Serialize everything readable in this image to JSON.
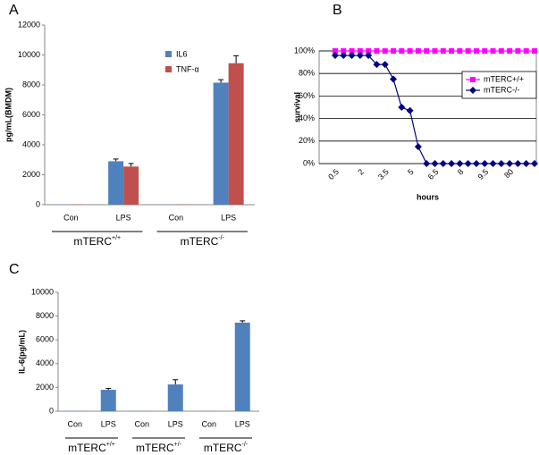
{
  "chart_data": [
    {
      "type": "bar",
      "panel_label": "A",
      "ylabel": "pg/mL(BMDM)",
      "categories": [
        "Con",
        "LPS",
        "Con",
        "LPS"
      ],
      "groups": [
        {
          "label": "mTERC",
          "superscript": "+/+"
        },
        {
          "label": "mTERC",
          "superscript": "-/-"
        }
      ],
      "series": [
        {
          "name": "IL6",
          "color": "#4f81bd",
          "values": [
            20,
            2900,
            20,
            8150
          ],
          "errors": [
            0,
            150,
            0,
            200
          ]
        },
        {
          "name": "TNF-α",
          "color": "#c0504d",
          "values": [
            20,
            2550,
            20,
            9450
          ],
          "errors": [
            0,
            200,
            0,
            500
          ]
        }
      ],
      "ylim": [
        0,
        12000
      ],
      "yticks": [
        0,
        2000,
        4000,
        6000,
        8000,
        10000,
        12000
      ],
      "legend": "top-right"
    },
    {
      "type": "line",
      "panel_label": "B",
      "ylabel": "survival",
      "xlabel": "hours",
      "categories": [
        "0.5",
        null,
        null,
        "2",
        null,
        null,
        "3.5",
        null,
        null,
        "5",
        null,
        null,
        "6.5",
        null,
        null,
        "8",
        null,
        null,
        "9.5",
        null,
        null,
        "80",
        null,
        null,
        null
      ],
      "series": [
        {
          "name": "mTERC+/+",
          "color": "#ff00ff",
          "marker": "square",
          "values": [
            100,
            100,
            100,
            100,
            100,
            100,
            100,
            100,
            100,
            100,
            100,
            100,
            100,
            100,
            100,
            100,
            100,
            100,
            100,
            100,
            100,
            100,
            100,
            100,
            100
          ]
        },
        {
          "name": "mTERC-/-",
          "color": "#000080",
          "marker": "diamond",
          "values": [
            96,
            96,
            96,
            96,
            96,
            88,
            88,
            75,
            50,
            47,
            15,
            0,
            0,
            0,
            0,
            0,
            0,
            0,
            0,
            0,
            0,
            0,
            0,
            0,
            0
          ]
        }
      ],
      "ylim": [
        0,
        100
      ],
      "yticks": [
        {
          "value": 0,
          "label": "0%"
        },
        {
          "value": 20,
          "label": "20%"
        },
        {
          "value": 40,
          "label": "40%"
        },
        {
          "value": 60,
          "label": "60%"
        },
        {
          "value": 80,
          "label": "80%"
        },
        {
          "value": 100,
          "label": "100%"
        }
      ],
      "grid": true,
      "legend": "right"
    },
    {
      "type": "bar",
      "panel_label": "C",
      "ylabel": "IL-6(pg/mL)",
      "categories": [
        "Con",
        "LPS",
        "Con",
        "LPS",
        "Con",
        "LPS"
      ],
      "groups": [
        {
          "label": "mTERC",
          "superscript": "+/+"
        },
        {
          "label": "mTERC",
          "superscript": "+/-"
        },
        {
          "label": "mTERC",
          "superscript": "-/-"
        }
      ],
      "color": "#4f81bd",
      "values": [
        20,
        1800,
        20,
        2250,
        20,
        7450
      ],
      "errors": [
        0,
        120,
        0,
        400,
        0,
        150
      ],
      "ylim": [
        0,
        10000
      ],
      "yticks": [
        0,
        2000,
        4000,
        6000,
        8000,
        10000
      ]
    }
  ]
}
